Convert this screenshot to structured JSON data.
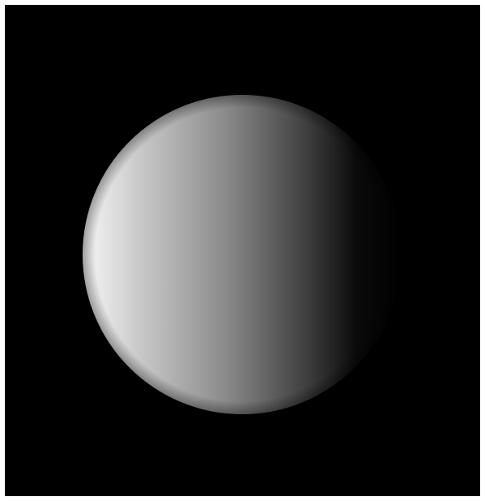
{
  "scene": {
    "subject": "sphere",
    "background_color": "#000000",
    "frame_color": "#ffffff",
    "lit_color": "#f7f7f7",
    "shadow_color": "#000000",
    "light_direction": "left"
  }
}
